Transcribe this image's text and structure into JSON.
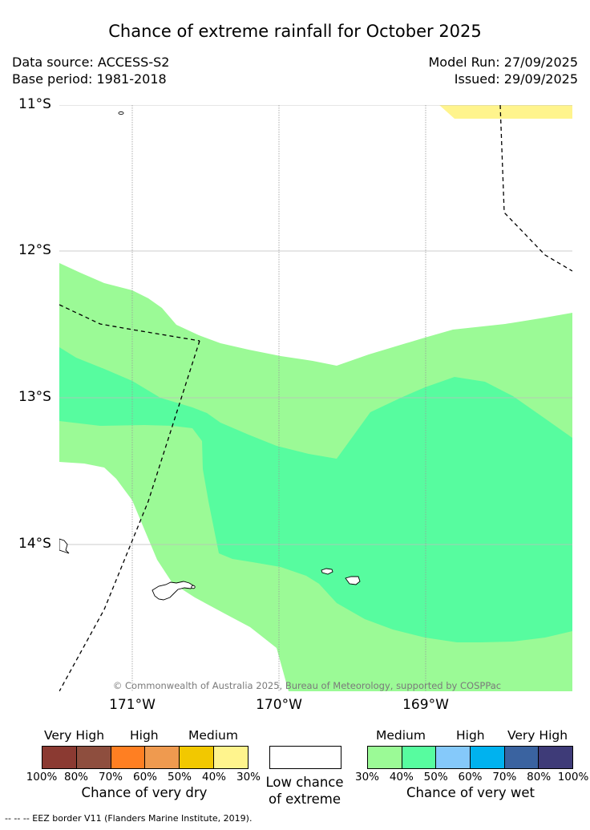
{
  "title": "Chance of extreme rainfall for October 2025",
  "meta": {
    "data_source": "Data source: ACCESS-S2",
    "base_period": "Base period: 1981-2018",
    "model_run": "Model Run: 27/09/2025",
    "issued": "Issued: 29/09/2025"
  },
  "map": {
    "lat_labels": [
      "11°S",
      "12°S",
      "13°S",
      "14°S"
    ],
    "lon_labels": [
      "171°W",
      "170°W",
      "169°W"
    ],
    "copyright": "© Commonwealth of Australia 2025, Bureau of Meteorology, supported by COSPPac",
    "colors": {
      "medium_wet": "#9bfa96",
      "medium_wet_high": "#57fc9f",
      "medium_dry_low": "#fff48d",
      "ocean": "#ffffff"
    }
  },
  "legend": {
    "dry": {
      "head_very_high": "Very High",
      "head_high": "High",
      "head_medium": "Medium",
      "colors": [
        "#8b3a32",
        "#8e4e3e",
        "#ff7f22",
        "#ef9a4f",
        "#f2c800",
        "#fff48d"
      ],
      "ticks": [
        "100%",
        "80%",
        "70%",
        "60%",
        "50%",
        "40%",
        "30%"
      ],
      "caption": "Chance of very dry"
    },
    "low": {
      "line1": "Low chance",
      "line2": "of extreme"
    },
    "wet": {
      "head_medium": "Medium",
      "head_high": "High",
      "head_very_high": "Very High",
      "colors": [
        "#9bfa96",
        "#57fc9f",
        "#85c9fa",
        "#00b2ef",
        "#3a63a0",
        "#3e3b78"
      ],
      "ticks": [
        "30%",
        "40%",
        "50%",
        "60%",
        "70%",
        "80%",
        "100%"
      ],
      "caption": "Chance of very wet"
    }
  },
  "footer": "--  --  -- EEZ border V11 (Flanders Marine Institute, 2019)."
}
